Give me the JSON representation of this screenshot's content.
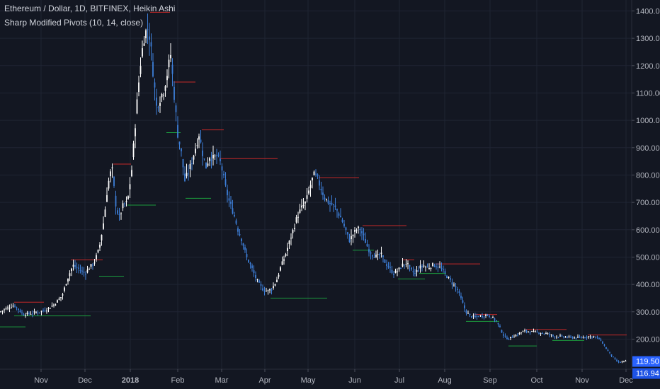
{
  "header": {
    "title": "Ethereum / Dollar, 1D, BITFINEX, Heikin Ashi",
    "indicator": "Sharp Modified Pivots (10, 14, close)"
  },
  "colors": {
    "background": "#131722",
    "up": "#ffffff",
    "down": "#3d7fd9",
    "pivot_high": "#c62828",
    "pivot_low": "#1b9e3e",
    "grid": "#1f2433",
    "axis_text": "#b2b5be",
    "price_tag": "#2962ff"
  },
  "chart_data": {
    "type": "candlestick",
    "x_axis": [
      "Nov",
      "Dec",
      "2018",
      "Feb",
      "Mar",
      "Apr",
      "May",
      "Jun",
      "Jul",
      "Aug",
      "Sep",
      "Oct",
      "Nov",
      "Dec"
    ],
    "y_axis": {
      "ticks": [
        "200.00",
        "300.00",
        "400.00",
        "500.00",
        "600.00",
        "700.00",
        "800.00",
        "900.00",
        "1000.00",
        "1100.00",
        "1200.00",
        "1300.00",
        "1400.00"
      ],
      "ylim": [
        90,
        1440
      ]
    },
    "close_series": [
      [
        0,
        300
      ],
      [
        20,
        325
      ],
      [
        33,
        290
      ],
      [
        45,
        295
      ],
      [
        56,
        300
      ],
      [
        67,
        310
      ],
      [
        78,
        330
      ],
      [
        88,
        360
      ],
      [
        95,
        420
      ],
      [
        103,
        470
      ],
      [
        112,
        455
      ],
      [
        120,
        440
      ],
      [
        126,
        460
      ],
      [
        133,
        480
      ],
      [
        140,
        530
      ],
      [
        147,
        640
      ],
      [
        152,
        760
      ],
      [
        158,
        830
      ],
      [
        163,
        700
      ],
      [
        168,
        640
      ],
      [
        174,
        690
      ],
      [
        180,
        700
      ],
      [
        186,
        820
      ],
      [
        192,
        1020
      ],
      [
        198,
        1200
      ],
      [
        203,
        1300
      ],
      [
        208,
        1340
      ],
      [
        212,
        1300
      ],
      [
        216,
        1180
      ],
      [
        221,
        1050
      ],
      [
        226,
        1080
      ],
      [
        231,
        1110
      ],
      [
        236,
        1170
      ],
      [
        241,
        1240
      ],
      [
        246,
        1090
      ],
      [
        251,
        950
      ],
      [
        256,
        880
      ],
      [
        261,
        780
      ],
      [
        266,
        810
      ],
      [
        271,
        850
      ],
      [
        276,
        900
      ],
      [
        281,
        950
      ],
      [
        286,
        880
      ],
      [
        291,
        830
      ],
      [
        296,
        870
      ],
      [
        301,
        860
      ],
      [
        306,
        870
      ],
      [
        312,
        840
      ],
      [
        318,
        760
      ],
      [
        324,
        700
      ],
      [
        330,
        660
      ],
      [
        336,
        600
      ],
      [
        342,
        560
      ],
      [
        348,
        500
      ],
      [
        354,
        470
      ],
      [
        360,
        430
      ],
      [
        366,
        400
      ],
      [
        372,
        380
      ],
      [
        378,
        375
      ],
      [
        384,
        385
      ],
      [
        390,
        410
      ],
      [
        396,
        460
      ],
      [
        402,
        500
      ],
      [
        408,
        550
      ],
      [
        414,
        600
      ],
      [
        420,
        650
      ],
      [
        426,
        680
      ],
      [
        432,
        700
      ],
      [
        438,
        760
      ],
      [
        443,
        800
      ],
      [
        447,
        795
      ],
      [
        452,
        760
      ],
      [
        458,
        720
      ],
      [
        464,
        700
      ],
      [
        470,
        690
      ],
      [
        476,
        670
      ],
      [
        482,
        640
      ],
      [
        488,
        600
      ],
      [
        493,
        560
      ],
      [
        498,
        580
      ],
      [
        503,
        600
      ],
      [
        508,
        605
      ],
      [
        514,
        570
      ],
      [
        520,
        530
      ],
      [
        526,
        510
      ],
      [
        532,
        500
      ],
      [
        538,
        510
      ],
      [
        544,
        480
      ],
      [
        550,
        460
      ],
      [
        556,
        440
      ],
      [
        562,
        450
      ],
      [
        568,
        470
      ],
      [
        574,
        480
      ],
      [
        580,
        450
      ],
      [
        586,
        440
      ],
      [
        592,
        460
      ],
      [
        598,
        470
      ],
      [
        604,
        460
      ],
      [
        610,
        470
      ],
      [
        616,
        470
      ],
      [
        622,
        460
      ],
      [
        628,
        440
      ],
      [
        634,
        420
      ],
      [
        640,
        400
      ],
      [
        646,
        380
      ],
      [
        652,
        340
      ],
      [
        658,
        300
      ],
      [
        664,
        285
      ],
      [
        670,
        280
      ],
      [
        676,
        285
      ],
      [
        682,
        285
      ],
      [
        688,
        290
      ],
      [
        694,
        280
      ],
      [
        700,
        270
      ],
      [
        706,
        240
      ],
      [
        712,
        210
      ],
      [
        718,
        200
      ],
      [
        724,
        210
      ],
      [
        730,
        215
      ],
      [
        736,
        225
      ],
      [
        742,
        230
      ],
      [
        748,
        228
      ],
      [
        754,
        225
      ],
      [
        760,
        225
      ],
      [
        766,
        222
      ],
      [
        772,
        220
      ],
      [
        778,
        215
      ],
      [
        784,
        210
      ],
      [
        790,
        210
      ],
      [
        796,
        208
      ],
      [
        802,
        207
      ],
      [
        808,
        206
      ],
      [
        814,
        205
      ],
      [
        820,
        205
      ],
      [
        826,
        208
      ],
      [
        832,
        210
      ],
      [
        838,
        210
      ],
      [
        844,
        205
      ],
      [
        850,
        190
      ],
      [
        856,
        165
      ],
      [
        862,
        145
      ],
      [
        868,
        125
      ],
      [
        874,
        115
      ],
      [
        880,
        118
      ],
      [
        885,
        120
      ]
    ],
    "pivots": [
      {
        "type": "high",
        "from": 20,
        "to": 62,
        "value": 335
      },
      {
        "type": "low",
        "from": 0,
        "to": 36,
        "value": 245
      },
      {
        "type": "low",
        "from": 20,
        "to": 128,
        "value": 285
      },
      {
        "type": "high",
        "from": 100,
        "to": 145,
        "value": 490
      },
      {
        "type": "low",
        "from": 140,
        "to": 175,
        "value": 430
      },
      {
        "type": "high",
        "from": 160,
        "to": 185,
        "value": 840
      },
      {
        "type": "low",
        "from": 180,
        "to": 220,
        "value": 690
      },
      {
        "type": "high",
        "from": 212,
        "to": 240,
        "value": 1395
      },
      {
        "type": "high",
        "from": 245,
        "to": 276,
        "value": 1140
      },
      {
        "type": "low",
        "from": 235,
        "to": 255,
        "value": 955
      },
      {
        "type": "high",
        "from": 285,
        "to": 316,
        "value": 965
      },
      {
        "type": "low",
        "from": 262,
        "to": 298,
        "value": 715
      },
      {
        "type": "high",
        "from": 310,
        "to": 392,
        "value": 860
      },
      {
        "type": "low",
        "from": 382,
        "to": 462,
        "value": 350
      },
      {
        "type": "high",
        "from": 450,
        "to": 507,
        "value": 790
      },
      {
        "type": "high",
        "from": 512,
        "to": 574,
        "value": 615
      },
      {
        "type": "low",
        "from": 498,
        "to": 528,
        "value": 525
      },
      {
        "type": "high",
        "from": 568,
        "to": 585,
        "value": 490
      },
      {
        "type": "low",
        "from": 562,
        "to": 600,
        "value": 420
      },
      {
        "type": "low",
        "from": 592,
        "to": 630,
        "value": 440
      },
      {
        "type": "high",
        "from": 615,
        "to": 678,
        "value": 475
      },
      {
        "type": "high",
        "from": 670,
        "to": 702,
        "value": 290
      },
      {
        "type": "low",
        "from": 658,
        "to": 705,
        "value": 265
      },
      {
        "type": "low",
        "from": 718,
        "to": 758,
        "value": 175
      },
      {
        "type": "high",
        "from": 742,
        "to": 800,
        "value": 235
      },
      {
        "type": "high",
        "from": 830,
        "to": 885,
        "value": 215
      },
      {
        "type": "low",
        "from": 780,
        "to": 825,
        "value": 195
      }
    ],
    "last_price": "119.50",
    "second_price": "116.94",
    "last_value": 119.5,
    "second_value": 116.94
  }
}
